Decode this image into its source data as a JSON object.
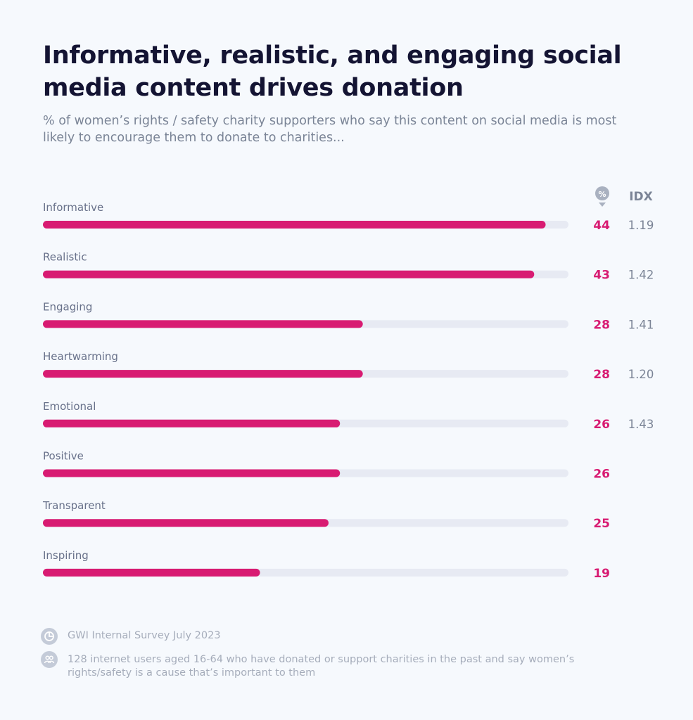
{
  "header": {
    "title": "Informative, realistic, and engaging social media content drives donation",
    "subtitle": "% of women’s rights / safety charity supporters who say this content on social media is most likely to encourage them to donate to charities..."
  },
  "chart_data": {
    "type": "bar",
    "orientation": "horizontal",
    "title": "Informative, realistic, and engaging social media content drives donation",
    "value_column_label": "%",
    "idx_column_label": "IDX",
    "xlim": [
      0,
      46
    ],
    "categories": [
      "Informative",
      "Realistic",
      "Engaging",
      "Heartwarming",
      "Emotional",
      "Positive",
      "Transparent",
      "Inspiring"
    ],
    "values": [
      44,
      43,
      28,
      28,
      26,
      26,
      25,
      19
    ],
    "idx": [
      "1.19",
      "1.42",
      "1.41",
      "1.20",
      "1.43",
      "",
      "",
      ""
    ],
    "colors": {
      "bar": "#d81b72",
      "track": "#e7eaf3"
    }
  },
  "footer": {
    "source": "GWI Internal Survey July 2023",
    "base": "128 internet users aged 16-64 who have donated or support charities in the past and say women’s rights/safety is a cause that’s important to them",
    "source_icon": "pie-chart-icon",
    "base_icon": "people-icon"
  }
}
